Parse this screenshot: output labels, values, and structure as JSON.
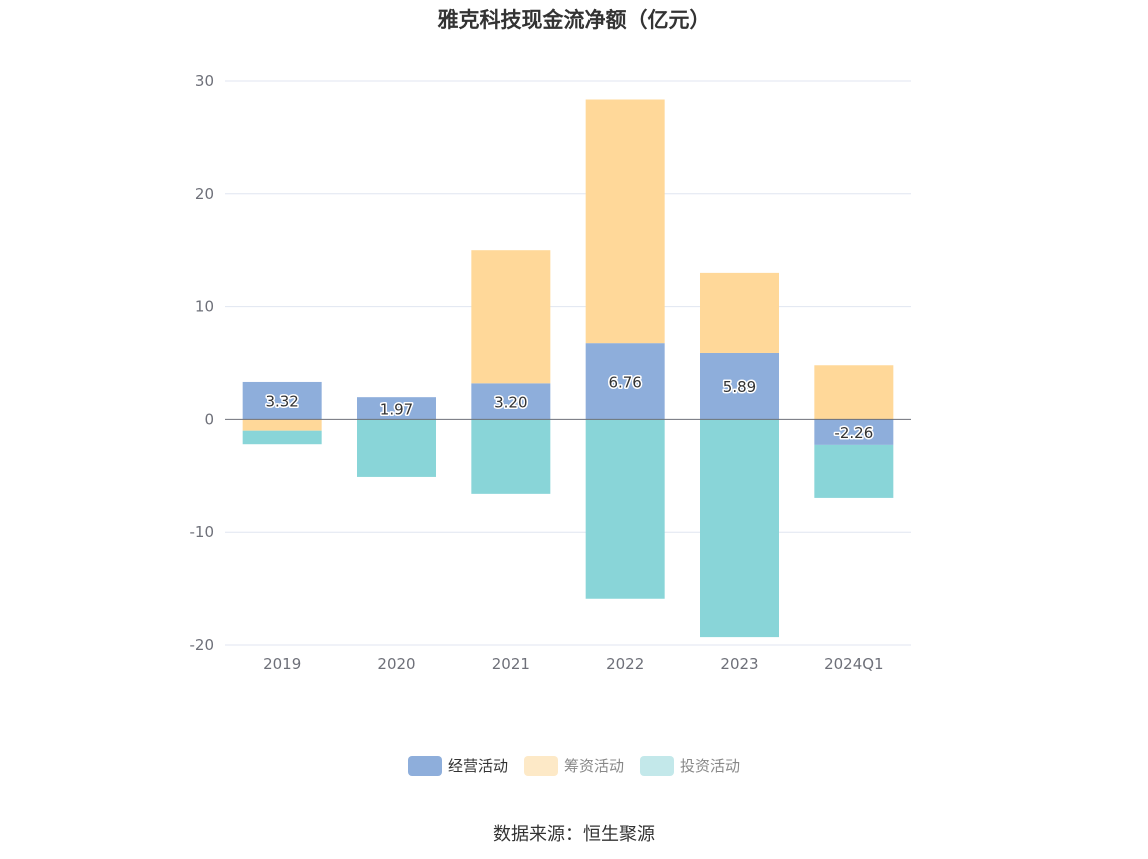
{
  "chart_data": {
    "type": "bar",
    "stacked": true,
    "title": "雅克科技现金流净额（亿元）",
    "categories": [
      "2019",
      "2020",
      "2021",
      "2022",
      "2023",
      "2024Q1"
    ],
    "series": [
      {
        "name": "经营活动",
        "color": "#8eaedb",
        "values": [
          3.32,
          1.97,
          3.2,
          6.76,
          5.89,
          -2.26
        ],
        "labels": [
          "3.32",
          "1.97",
          "3.20",
          "6.76",
          "5.89",
          "-2.26"
        ]
      },
      {
        "name": "筹资活动",
        "color": "#ffd899",
        "values": [
          -1.0,
          0.0,
          11.8,
          21.6,
          7.1,
          4.8
        ]
      },
      {
        "name": "投资活动",
        "color": "#89d5d8",
        "values": [
          -1.2,
          -5.1,
          -6.6,
          -15.9,
          -19.3,
          -4.7
        ]
      }
    ],
    "ylim": [
      -20,
      30
    ],
    "yticks": [
      -20,
      -10,
      0,
      10,
      20,
      30
    ],
    "grid": true,
    "legend_position": "bottom",
    "legend_swatch_colors": {
      "经营活动": "#8eaedb",
      "筹资活动": "#fde9c7",
      "投资活动": "#c3e8ea"
    }
  },
  "source_text": "数据来源：恒生聚源"
}
